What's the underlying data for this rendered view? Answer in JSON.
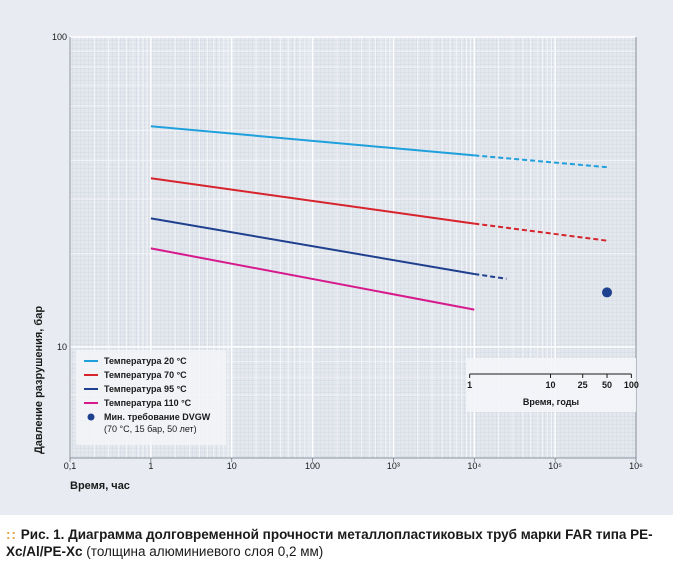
{
  "chart_data": {
    "type": "line",
    "xscale": "log",
    "yscale": "log",
    "xlim": [
      0.1,
      1000000
    ],
    "ylim": [
      7,
      100
    ],
    "x_ticks": [
      "0,1",
      "1",
      "10",
      "100",
      "10³",
      "10⁴",
      "10⁵",
      "10⁶"
    ],
    "y_ticks": [
      "100",
      "10"
    ],
    "xlabel": "Время, час",
    "ylabel": "Давление разрушения, бар",
    "grid": true,
    "legend_position": "bottom-left",
    "series": [
      {
        "name": "Температура 20 °C",
        "color": "#1ea0dc",
        "solid": [
          [
            1,
            51.5
          ],
          [
            10000,
            41.5
          ]
        ],
        "dashed": [
          [
            10000,
            41.5
          ],
          [
            450000,
            38.0
          ]
        ]
      },
      {
        "name": "Температура 70 °C",
        "color": "#d7232b",
        "solid": [
          [
            1,
            35.0
          ],
          [
            10000,
            25.0
          ]
        ],
        "dashed": [
          [
            10000,
            25.0
          ],
          [
            450000,
            22.0
          ]
        ]
      },
      {
        "name": "Температура 95 °C",
        "color": "#1f3f8f",
        "solid": [
          [
            1,
            26.0
          ],
          [
            10000,
            17.2
          ]
        ],
        "dashed": [
          [
            10000,
            17.2
          ],
          [
            25000,
            16.6
          ]
        ]
      },
      {
        "name": "Температура 110 °C",
        "color": "#d61a8c",
        "solid": [
          [
            1,
            20.8
          ],
          [
            10000,
            13.2
          ]
        ],
        "dashed": []
      }
    ],
    "marker": {
      "name": "Мин. требование DVGW",
      "note": "(70 °C, 15 бар, 50 лет)",
      "x": 438000,
      "y": 15,
      "color": "#1f3f8f"
    },
    "secondary_axis": {
      "xlabel": "Время, годы",
      "ticks": [
        {
          "value": 1,
          "label": "1"
        },
        {
          "value": 10,
          "label": "10"
        },
        {
          "value": 25,
          "label": "25"
        },
        {
          "value": 50,
          "label": "50"
        },
        {
          "value": 100,
          "label": "100"
        }
      ]
    }
  },
  "caption": {
    "dots": "::",
    "fig_no": "Рис. 1.",
    "title_bold": "Диаграмма долговременной прочности металлопластиковых труб марки FAR типа PE-Xc/Al/PE-Xc",
    "rest": "(толщина алюминиевого слоя 0,2 мм)"
  }
}
